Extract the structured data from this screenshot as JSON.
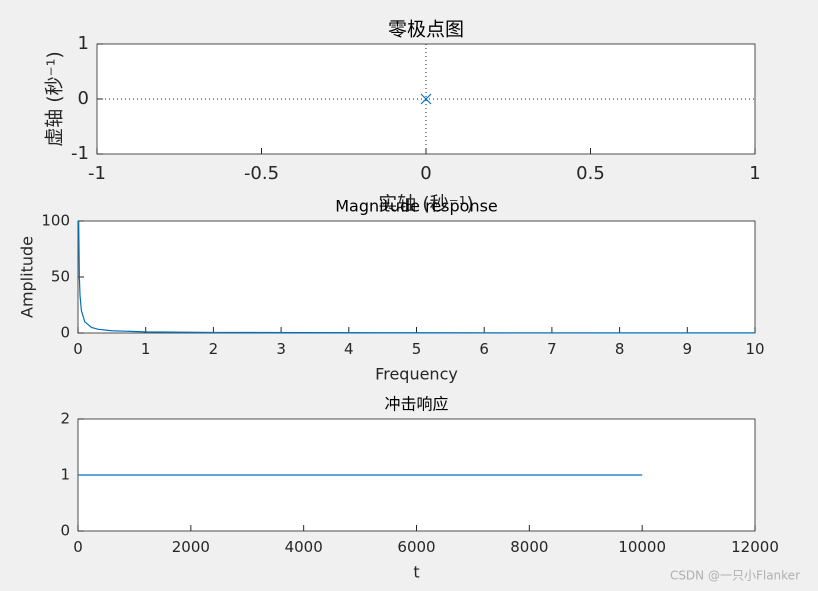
{
  "chart_data": [
    {
      "type": "scatter",
      "title": "零极点图",
      "xlabel": "实轴 (秒⁻¹)",
      "ylabel": "虚轴 (秒⁻¹)",
      "series": [
        {
          "marker": "x",
          "color": "#0072bd",
          "x": [
            0
          ],
          "values": [
            0
          ]
        }
      ],
      "xlim": [
        -1,
        1
      ],
      "xticks": [
        -1,
        -0.5,
        0,
        0.5,
        1
      ],
      "ylim": [
        -1,
        1
      ],
      "yticks": [
        -1,
        0,
        1
      ],
      "grid": false
    },
    {
      "type": "line",
      "title": "Magnitude response",
      "xlabel": "Frequency",
      "ylabel": "Amplitude",
      "series": [
        {
          "color": "#0072bd",
          "x": [
            0.01,
            0.02,
            0.03,
            0.05,
            0.1,
            0.2,
            0.3,
            0.5,
            1,
            2,
            5,
            10
          ],
          "values": [
            100,
            50,
            33.3,
            20,
            10,
            5,
            3.3,
            2,
            1,
            0.5,
            0.2,
            0.1
          ]
        }
      ],
      "xlim": [
        0,
        10
      ],
      "xticks": [
        0,
        1,
        2,
        3,
        4,
        5,
        6,
        7,
        8,
        9,
        10
      ],
      "ylim": [
        0,
        100
      ],
      "yticks": [
        0,
        50,
        100
      ],
      "grid": false
    },
    {
      "type": "line",
      "title": "冲击响应",
      "xlabel": "t",
      "series": [
        {
          "color": "#0072bd",
          "x": [
            0,
            10000
          ],
          "values": [
            1,
            1
          ]
        }
      ],
      "xlim": [
        0,
        12000
      ],
      "xticks": [
        0,
        2000,
        4000,
        6000,
        8000,
        10000,
        12000
      ],
      "ylim": [
        0,
        2
      ],
      "yticks": [
        0,
        1,
        2
      ],
      "grid": false
    }
  ],
  "watermark": "CSDN @一只小Flanker"
}
